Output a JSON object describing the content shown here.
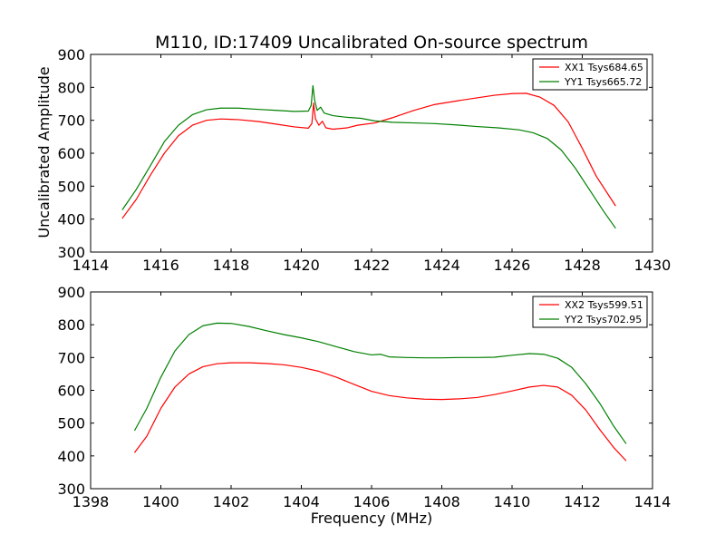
{
  "title": "M110, ID:17409 Uncalibrated On-source spectrum",
  "ylabel": "Uncalibrated Amplitude",
  "xlabel": "Frequency (MHz)",
  "chart_data": [
    {
      "type": "line",
      "xlim": [
        1414,
        1430
      ],
      "ylim": [
        300,
        900
      ],
      "xticks": [
        1414,
        1416,
        1418,
        1420,
        1422,
        1424,
        1426,
        1428,
        1430
      ],
      "yticks": [
        300,
        400,
        500,
        600,
        700,
        800,
        900
      ],
      "legend_position": "top-right",
      "grid": false,
      "series": [
        {
          "name": "XX1 Tsys684.65",
          "color": "#ff0000",
          "points": [
            [
              1414.9,
              402
            ],
            [
              1415.3,
              460
            ],
            [
              1415.7,
              533
            ],
            [
              1416.1,
              600
            ],
            [
              1416.5,
              653
            ],
            [
              1416.9,
              685
            ],
            [
              1417.3,
              700
            ],
            [
              1417.7,
              704
            ],
            [
              1418.2,
              702
            ],
            [
              1418.8,
              696
            ],
            [
              1419.3,
              688
            ],
            [
              1419.8,
              680
            ],
            [
              1420.2,
              676
            ],
            [
              1420.3,
              690
            ],
            [
              1420.35,
              752
            ],
            [
              1420.4,
              705
            ],
            [
              1420.5,
              685
            ],
            [
              1420.6,
              697
            ],
            [
              1420.7,
              677
            ],
            [
              1420.9,
              673
            ],
            [
              1421.3,
              677
            ],
            [
              1421.6,
              685
            ],
            [
              1422.1,
              692
            ],
            [
              1422.6,
              708
            ],
            [
              1423.2,
              730
            ],
            [
              1423.8,
              748
            ],
            [
              1424.5,
              760
            ],
            [
              1425.0,
              768
            ],
            [
              1425.5,
              776
            ],
            [
              1426.0,
              781
            ],
            [
              1426.4,
              782
            ],
            [
              1426.8,
              770
            ],
            [
              1427.2,
              745
            ],
            [
              1427.6,
              695
            ],
            [
              1428.0,
              615
            ],
            [
              1428.4,
              530
            ],
            [
              1428.95,
              440
            ]
          ]
        },
        {
          "name": "YY1 Tsys665.72",
          "color": "#008000",
          "points": [
            [
              1414.9,
              428
            ],
            [
              1415.3,
              490
            ],
            [
              1415.7,
              562
            ],
            [
              1416.1,
              635
            ],
            [
              1416.5,
              685
            ],
            [
              1416.9,
              717
            ],
            [
              1417.3,
              732
            ],
            [
              1417.7,
              737
            ],
            [
              1418.2,
              737
            ],
            [
              1418.8,
              733
            ],
            [
              1419.3,
              730
            ],
            [
              1419.8,
              727
            ],
            [
              1420.2,
              728
            ],
            [
              1420.28,
              745
            ],
            [
              1420.33,
              805
            ],
            [
              1420.38,
              760
            ],
            [
              1420.45,
              730
            ],
            [
              1420.55,
              740
            ],
            [
              1420.65,
              722
            ],
            [
              1420.9,
              714
            ],
            [
              1421.3,
              709
            ],
            [
              1421.7,
              706
            ],
            [
              1422.1,
              698
            ],
            [
              1422.6,
              694
            ],
            [
              1423.2,
              692
            ],
            [
              1423.8,
              690
            ],
            [
              1424.4,
              686
            ],
            [
              1425.0,
              681
            ],
            [
              1425.6,
              677
            ],
            [
              1426.2,
              671
            ],
            [
              1426.6,
              662
            ],
            [
              1427.0,
              645
            ],
            [
              1427.4,
              610
            ],
            [
              1427.8,
              555
            ],
            [
              1428.2,
              490
            ],
            [
              1428.6,
              425
            ],
            [
              1428.95,
              372
            ]
          ]
        }
      ]
    },
    {
      "type": "line",
      "xlim": [
        1398,
        1414
      ],
      "ylim": [
        300,
        900
      ],
      "xticks": [
        1398,
        1400,
        1402,
        1404,
        1406,
        1408,
        1410,
        1412,
        1414
      ],
      "yticks": [
        300,
        400,
        500,
        600,
        700,
        800,
        900
      ],
      "legend_position": "top-right",
      "grid": false,
      "series": [
        {
          "name": "XX2 Tsys599.51",
          "color": "#ff0000",
          "points": [
            [
              1399.25,
              410
            ],
            [
              1399.6,
              460
            ],
            [
              1400.0,
              545
            ],
            [
              1400.4,
              610
            ],
            [
              1400.8,
              650
            ],
            [
              1401.2,
              672
            ],
            [
              1401.6,
              681
            ],
            [
              1402.0,
              684
            ],
            [
              1402.5,
              684
            ],
            [
              1403.0,
              682
            ],
            [
              1403.5,
              678
            ],
            [
              1404.0,
              670
            ],
            [
              1404.5,
              658
            ],
            [
              1405.0,
              640
            ],
            [
              1405.5,
              618
            ],
            [
              1406.0,
              597
            ],
            [
              1406.5,
              584
            ],
            [
              1407.0,
              577
            ],
            [
              1407.5,
              573
            ],
            [
              1408.0,
              572
            ],
            [
              1408.5,
              574
            ],
            [
              1409.0,
              578
            ],
            [
              1409.5,
              587
            ],
            [
              1410.0,
              598
            ],
            [
              1410.5,
              610
            ],
            [
              1410.9,
              615
            ],
            [
              1411.3,
              610
            ],
            [
              1411.7,
              585
            ],
            [
              1412.1,
              540
            ],
            [
              1412.5,
              480
            ],
            [
              1412.9,
              425
            ],
            [
              1413.25,
              385
            ]
          ]
        },
        {
          "name": "YY2 Tsys702.95",
          "color": "#008000",
          "points": [
            [
              1399.25,
              477
            ],
            [
              1399.6,
              545
            ],
            [
              1400.0,
              640
            ],
            [
              1400.4,
              720
            ],
            [
              1400.8,
              770
            ],
            [
              1401.2,
              797
            ],
            [
              1401.6,
              805
            ],
            [
              1402.0,
              804
            ],
            [
              1402.5,
              795
            ],
            [
              1403.0,
              782
            ],
            [
              1403.5,
              770
            ],
            [
              1404.0,
              760
            ],
            [
              1404.5,
              748
            ],
            [
              1405.0,
              733
            ],
            [
              1405.5,
              718
            ],
            [
              1406.0,
              708
            ],
            [
              1406.25,
              710
            ],
            [
              1406.5,
              702
            ],
            [
              1407.0,
              700
            ],
            [
              1407.5,
              699
            ],
            [
              1408.0,
              699
            ],
            [
              1408.5,
              700
            ],
            [
              1409.0,
              700
            ],
            [
              1409.5,
              701
            ],
            [
              1410.0,
              707
            ],
            [
              1410.5,
              712
            ],
            [
              1410.9,
              710
            ],
            [
              1411.3,
              698
            ],
            [
              1411.7,
              670
            ],
            [
              1412.1,
              620
            ],
            [
              1412.5,
              560
            ],
            [
              1412.9,
              490
            ],
            [
              1413.25,
              437
            ]
          ]
        }
      ]
    }
  ]
}
